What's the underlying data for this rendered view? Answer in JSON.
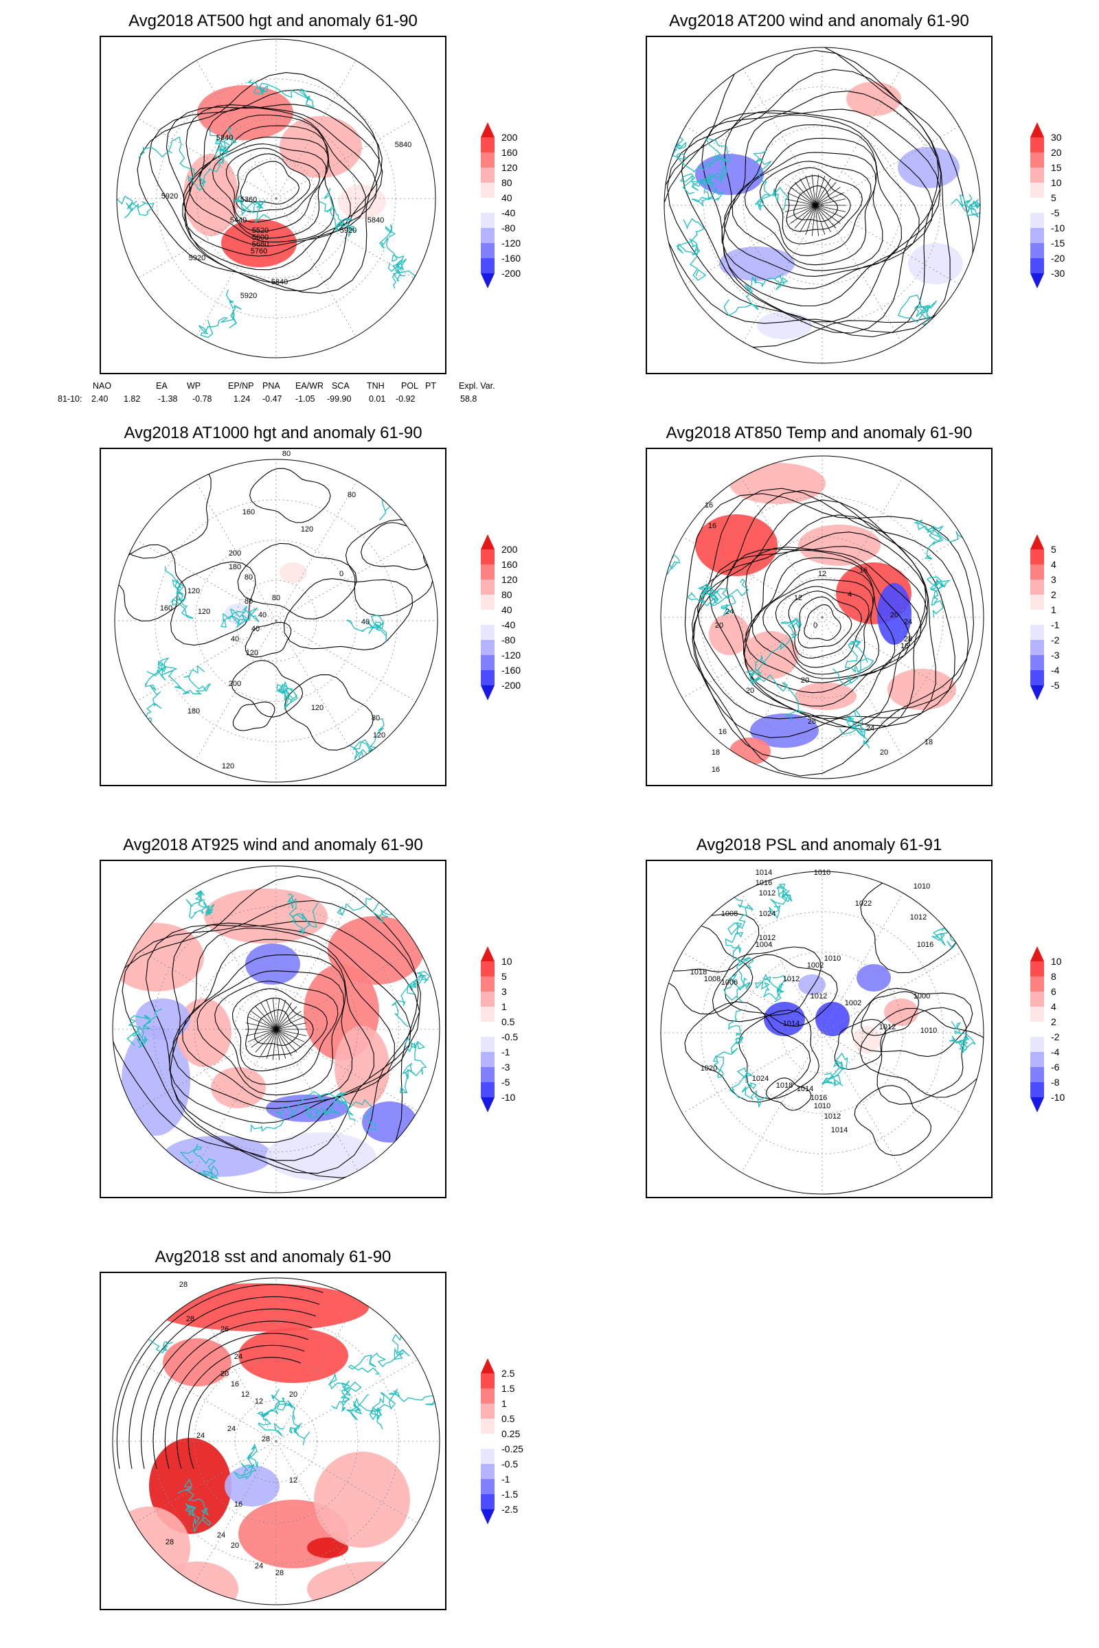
{
  "colors": {
    "coast": "#1fbfbf",
    "contour": "#000000",
    "grid": "#888888",
    "reds": [
      "#ffe6e6",
      "#ffb3b3",
      "#ff8080",
      "#ff4d4d",
      "#e61919"
    ],
    "blues": [
      "#e6e6ff",
      "#b3b3ff",
      "#8080ff",
      "#4d4dff",
      "#1919e6"
    ]
  },
  "panels": [
    {
      "id": "at500",
      "title": "Avg2018 AT500 hgt and anomaly 61-90",
      "colorbar": [
        "200",
        "160",
        "120",
        "80",
        "40",
        "-40",
        "-80",
        "-120",
        "-160",
        "-200"
      ],
      "labels": [
        "5840",
        "5920",
        "5360",
        "5440",
        "5920",
        "5920",
        "5840",
        "5840",
        "5920",
        "5760",
        "5680",
        "5600",
        "5520",
        "5840"
      ]
    },
    {
      "id": "at200",
      "title": "Avg2018 AT200 wind and anomaly 61-90",
      "colorbar": [
        "30",
        "20",
        "15",
        "10",
        "5",
        "-5",
        "-10",
        "-15",
        "-20",
        "-30"
      ],
      "labels": []
    },
    {
      "id": "at1000",
      "title": "Avg2018 AT1000 hgt and anomaly 61-90",
      "colorbar": [
        "200",
        "160",
        "120",
        "80",
        "40",
        "-40",
        "-80",
        "-120",
        "-160",
        "-200"
      ],
      "labels": [
        "80",
        "80",
        "160",
        "120",
        "200",
        "180",
        "120",
        "160",
        "120",
        "80",
        "80",
        "40",
        "80",
        "40",
        "40",
        "0",
        "40",
        "120",
        "200",
        "180",
        "120",
        "80",
        "120",
        "120"
      ]
    },
    {
      "id": "at850",
      "title": "Avg2018 AT850 Temp and anomaly 61-90",
      "colorbar": [
        "5",
        "4",
        "3",
        "2",
        "1",
        "-1",
        "-2",
        "-3",
        "-4",
        "-5"
      ],
      "labels": [
        "16",
        "16",
        "12",
        "24",
        "20",
        "4",
        "20",
        "0",
        "24",
        "28",
        "20",
        "16",
        "12",
        "16",
        "20",
        "28",
        "24",
        "16",
        "18",
        "16",
        "20",
        "18"
      ]
    },
    {
      "id": "at925",
      "title": "Avg2018 AT925 wind and anomaly 61-90",
      "colorbar": [
        "10",
        "5",
        "3",
        "1",
        "0.5",
        "-0.5",
        "-1",
        "-3",
        "-5",
        "-10"
      ],
      "labels": []
    },
    {
      "id": "psl",
      "title": "Avg2018 PSL and anomaly 61-91",
      "colorbar": [
        "10",
        "8",
        "6",
        "4",
        "2",
        "-2",
        "-4",
        "-6",
        "-8",
        "-10"
      ],
      "labels": [
        "1010",
        "1010",
        "1014",
        "1016",
        "1012",
        "1008",
        "1024",
        "1022",
        "1012",
        "1004",
        "1002",
        "1012",
        "1016",
        "1018",
        "1008",
        "1006",
        "1012",
        "1010",
        "1012",
        "1014",
        "1002",
        "1000",
        "1020",
        "1024",
        "1018",
        "1014",
        "1016",
        "1010",
        "1012",
        "1014",
        "1012",
        "1010"
      ]
    },
    {
      "id": "sst",
      "title": "Avg2018 sst and anomaly 61-90",
      "colorbar": [
        "2.5",
        "1.5",
        "1",
        "0.5",
        "0.25",
        "-0.25",
        "-0.5",
        "-1",
        "-1.5",
        "-2.5"
      ],
      "labels": [
        "28",
        "28",
        "26",
        "24",
        "20",
        "16",
        "12",
        "12",
        "24",
        "24",
        "20",
        "28",
        "12",
        "16",
        "24",
        "20",
        "24",
        "28",
        "28"
      ]
    }
  ],
  "teleconnection": {
    "headers": [
      "NAO",
      "EA",
      "WP",
      "EP/NP",
      "PNA",
      "EA/WR",
      "SCA",
      "TNH",
      "POL",
      "PT",
      "Expl. Var."
    ],
    "row_label": "81-10:",
    "values": [
      "2.40",
      "1.82",
      "-1.38",
      "-0.78",
      "1.24",
      "-0.47",
      "-1.05",
      "-99.90",
      "0.01",
      "-0.92",
      "58.8"
    ]
  }
}
